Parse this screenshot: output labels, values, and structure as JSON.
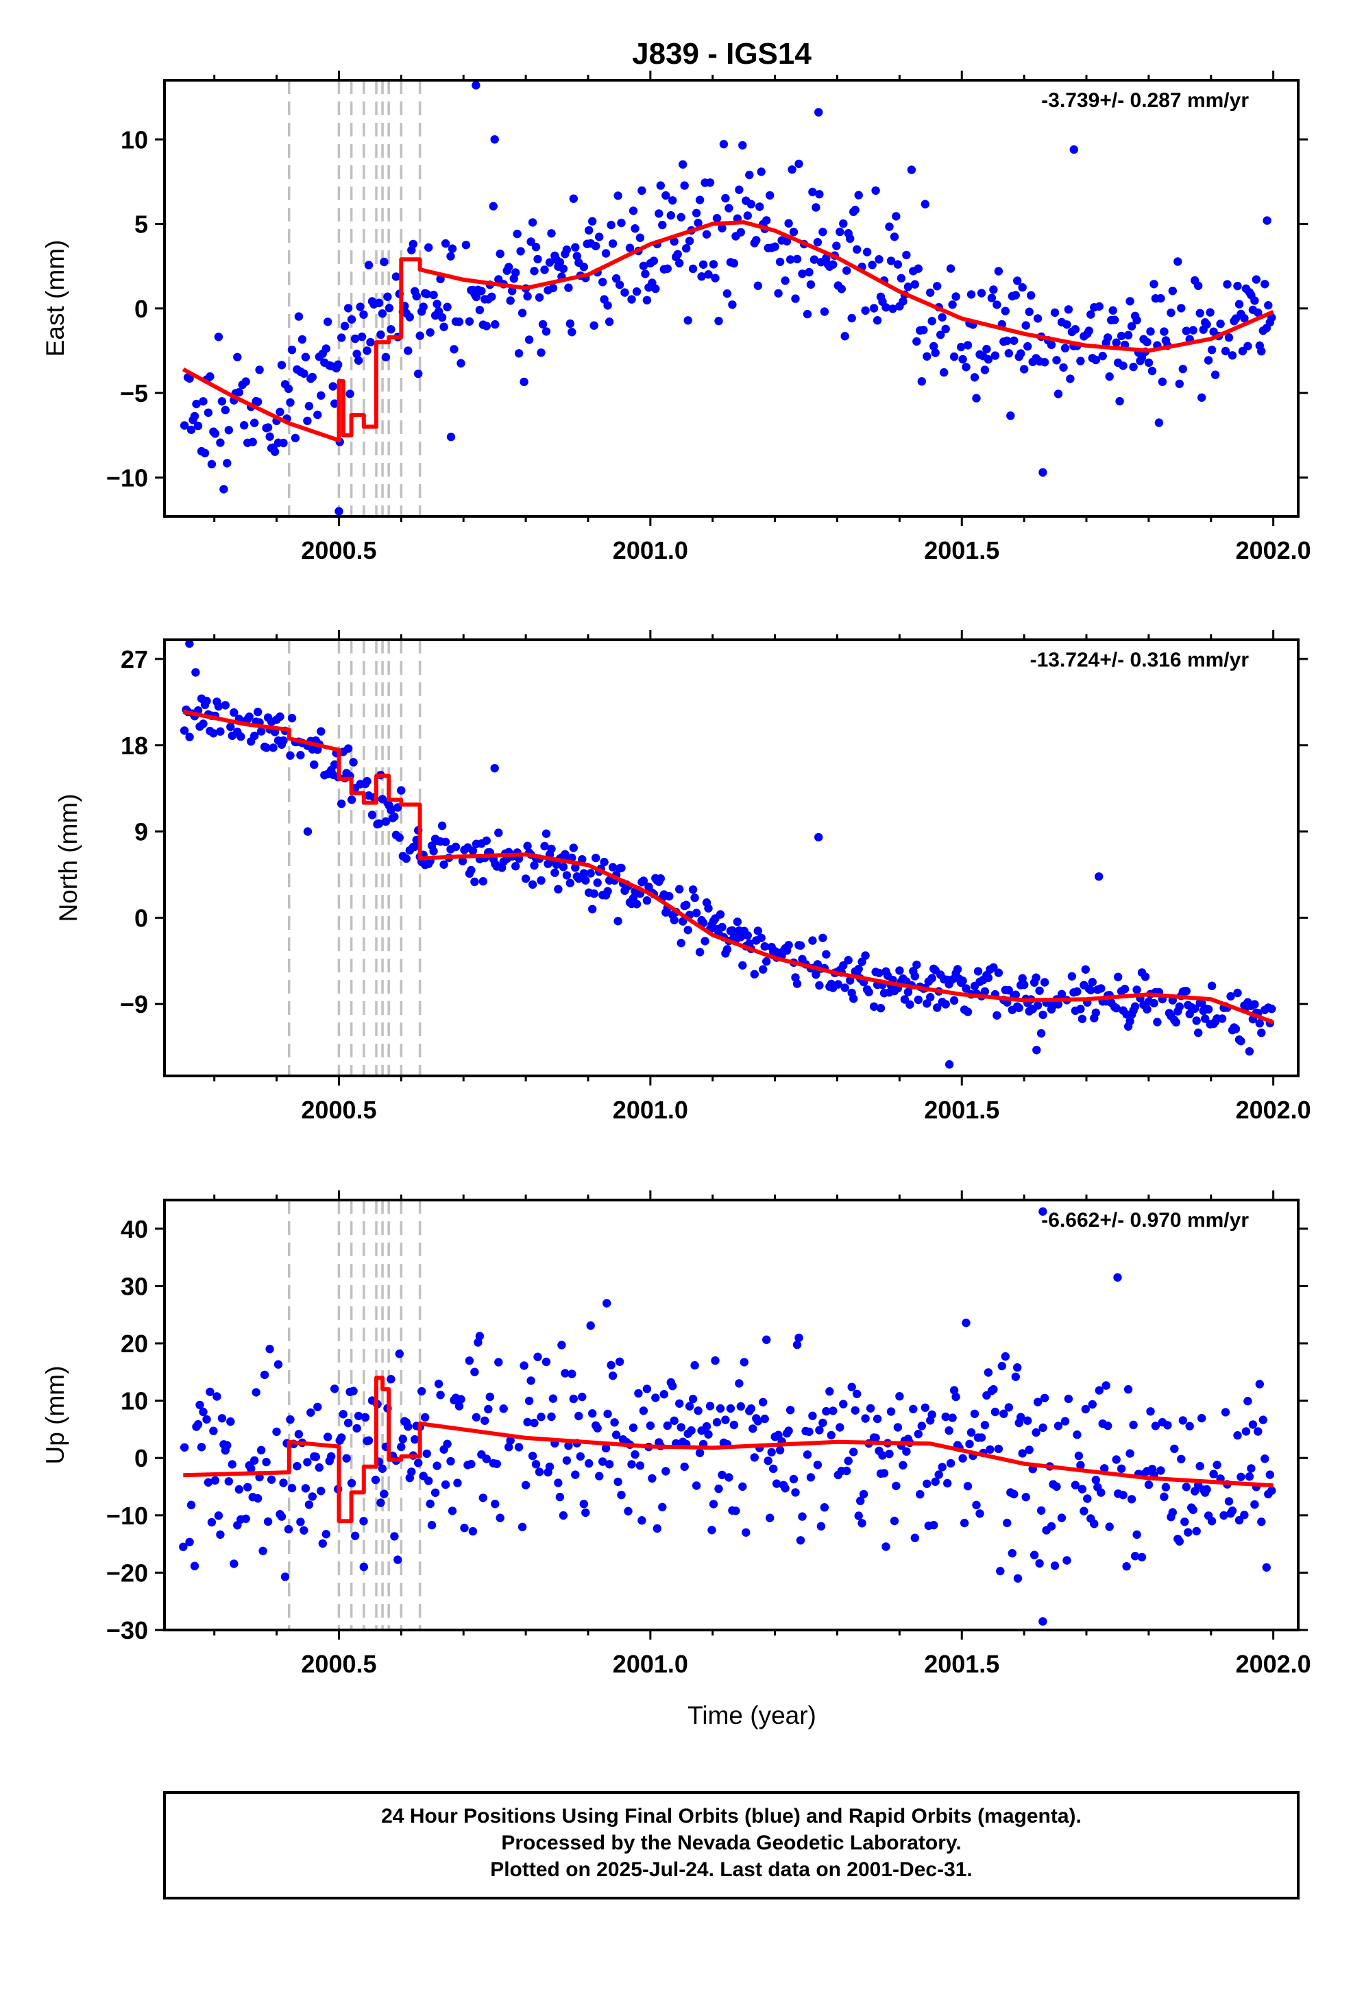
{
  "title": "J839 - IGS14",
  "colors": {
    "final": "#0000ff",
    "rapid": "#ff00ff",
    "model": "#ff0000",
    "events": "#c0c0c0",
    "axes": "#000000"
  },
  "chart_data": [
    {
      "type": "scatter",
      "component": "east",
      "ylabel": "East (mm)",
      "xlabel": "",
      "rate_label": "-3.739+/- 0.287 mm/yr",
      "xlim": [
        2000.22,
        2002.04
      ],
      "ylim": [
        -12.3,
        13.5
      ],
      "xticks": [
        2000.5,
        2001.0,
        2001.5,
        2002.0
      ],
      "xtick_labels": [
        "2000.5",
        "2001.0",
        "2001.5",
        "2002.0"
      ],
      "yticks": [
        -10,
        -5,
        0,
        5,
        10
      ],
      "ytick_labels": [
        "−10",
        "−5",
        "0",
        "5",
        "10"
      ],
      "event_lines": [
        2000.42,
        2000.5,
        2000.52,
        2000.54,
        2000.56,
        2000.57,
        2000.58,
        2000.6,
        2000.63
      ],
      "model": {
        "x": [
          2000.25,
          2000.33,
          2000.42,
          2000.5,
          2000.5,
          2000.507,
          2000.507,
          2000.52,
          2000.52,
          2000.54,
          2000.54,
          2000.56,
          2000.56,
          2000.58,
          2000.58,
          2000.6,
          2000.6,
          2000.63,
          2000.63,
          2000.7,
          2000.8,
          2000.9,
          2001.0,
          2001.1,
          2001.15,
          2001.2,
          2001.3,
          2001.4,
          2001.5,
          2001.6,
          2001.7,
          2001.8,
          2001.9,
          2002.0
        ],
        "y": [
          -3.6,
          -5.2,
          -6.8,
          -7.8,
          -4.3,
          -4.3,
          -7.5,
          -7.5,
          -6.3,
          -6.3,
          -7.0,
          -7.0,
          -2.0,
          -2.0,
          -1.7,
          -1.7,
          2.9,
          2.9,
          2.3,
          1.7,
          1.2,
          2.0,
          3.8,
          5.0,
          5.1,
          4.6,
          3.0,
          1.0,
          -0.6,
          -1.5,
          -2.2,
          -2.5,
          -1.8,
          -0.2
        ]
      },
      "trend": {
        "points": [
          [
            2000.25,
            -5.0
          ],
          [
            2000.4,
            -6.5
          ],
          [
            2000.6,
            0.5
          ],
          [
            2000.8,
            1.3
          ],
          [
            2001.0,
            3.7
          ],
          [
            2001.15,
            5.0
          ],
          [
            2001.3,
            3.0
          ],
          [
            2001.5,
            -0.8
          ],
          [
            2001.75,
            -2.3
          ],
          [
            2002.0,
            -0.2
          ]
        ]
      },
      "scatter_seed": 11,
      "scatter_sd": 2.0,
      "outliers": [
        [
          2000.72,
          13.2
        ],
        [
          2000.75,
          10.0
        ],
        [
          2000.5,
          -12.0
        ],
        [
          2001.63,
          -9.7
        ],
        [
          2001.68,
          9.4
        ],
        [
          2001.27,
          11.6
        ],
        [
          2000.68,
          -7.6
        ],
        [
          2001.99,
          5.2
        ]
      ]
    },
    {
      "type": "scatter",
      "component": "north",
      "ylabel": "North (mm)",
      "xlabel": "",
      "rate_label": "-13.724+/- 0.316 mm/yr",
      "xlim": [
        2000.22,
        2002.04
      ],
      "ylim": [
        -16.5,
        29
      ],
      "xticks": [
        2000.5,
        2001.0,
        2001.5,
        2002.0
      ],
      "xtick_labels": [
        "2000.5",
        "2001.0",
        "2001.5",
        "2002.0"
      ],
      "yticks": [
        -9,
        0,
        9,
        18,
        27
      ],
      "ytick_labels": [
        "−9",
        "0",
        "9",
        "18",
        "27"
      ],
      "event_lines": [
        2000.42,
        2000.5,
        2000.52,
        2000.54,
        2000.56,
        2000.57,
        2000.58,
        2000.6,
        2000.63
      ],
      "model": {
        "x": [
          2000.25,
          2000.35,
          2000.42,
          2000.42,
          2000.5,
          2000.5,
          2000.52,
          2000.52,
          2000.54,
          2000.54,
          2000.56,
          2000.56,
          2000.58,
          2000.58,
          2000.6,
          2000.6,
          2000.63,
          2000.63,
          2000.7,
          2000.8,
          2000.9,
          2001.0,
          2001.1,
          2001.2,
          2001.3,
          2001.4,
          2001.5,
          2001.6,
          2001.7,
          2001.8,
          2001.9,
          2002.0
        ],
        "y": [
          21.5,
          20.2,
          19.6,
          18.7,
          17.5,
          14.5,
          14.5,
          13.0,
          13.0,
          12.0,
          12.0,
          14.8,
          14.8,
          12.3,
          12.3,
          11.8,
          11.8,
          6.2,
          6.4,
          6.6,
          5.5,
          2.5,
          -1.8,
          -4.2,
          -5.8,
          -7.0,
          -8.0,
          -8.6,
          -8.5,
          -8.0,
          -8.5,
          -10.9
        ]
      },
      "trend": {
        "points": [
          [
            2000.25,
            21.3
          ],
          [
            2000.42,
            19.0
          ],
          [
            2000.55,
            12.7
          ],
          [
            2000.63,
            7.0
          ],
          [
            2000.85,
            5.8
          ],
          [
            2001.0,
            2.4
          ],
          [
            2001.15,
            -2.5
          ],
          [
            2001.3,
            -5.6
          ],
          [
            2001.5,
            -8.0
          ],
          [
            2001.75,
            -8.6
          ],
          [
            2002.0,
            -10.6
          ]
        ]
      },
      "scatter_seed": 23,
      "scatter_sd": 1.35,
      "outliers": [
        [
          2000.26,
          28.6
        ],
        [
          2000.27,
          25.6
        ],
        [
          2001.27,
          8.4
        ],
        [
          2001.72,
          4.3
        ],
        [
          2001.48,
          -15.3
        ],
        [
          2001.62,
          -13.8
        ],
        [
          2000.45,
          9.0
        ],
        [
          2000.75,
          15.6
        ]
      ]
    },
    {
      "type": "scatter",
      "component": "up",
      "ylabel": "Up (mm)",
      "xlabel": "Time (year)",
      "rate_label": "-6.662+/- 0.970 mm/yr",
      "xlim": [
        2000.22,
        2002.04
      ],
      "ylim": [
        -30,
        45
      ],
      "xticks": [
        2000.5,
        2001.0,
        2001.5,
        2002.0
      ],
      "xtick_labels": [
        "2000.5",
        "2001.0",
        "2001.5",
        "2002.0"
      ],
      "yticks": [
        -30,
        -20,
        -10,
        0,
        10,
        20,
        30,
        40
      ],
      "ytick_labels": [
        "−30",
        "−20",
        "−10",
        "0",
        "10",
        "20",
        "30",
        "40"
      ],
      "event_lines": [
        2000.42,
        2000.5,
        2000.52,
        2000.54,
        2000.56,
        2000.57,
        2000.58,
        2000.6,
        2000.63
      ],
      "model": {
        "x": [
          2000.25,
          2000.42,
          2000.42,
          2000.5,
          2000.5,
          2000.52,
          2000.52,
          2000.54,
          2000.54,
          2000.56,
          2000.56,
          2000.57,
          2000.57,
          2000.58,
          2000.58,
          2000.6,
          2000.6,
          2000.63,
          2000.63,
          2000.8,
          2001.0,
          2001.1,
          2001.3,
          2001.45,
          2001.6,
          2001.8,
          2002.0
        ],
        "y": [
          -3.0,
          -2.5,
          2.8,
          2.0,
          -11.0,
          -11.0,
          -6.0,
          -6.0,
          -1.5,
          -1.5,
          14.0,
          14.0,
          12.0,
          12.0,
          -0.3,
          -0.3,
          0.3,
          0.3,
          6.0,
          3.5,
          2.0,
          1.8,
          2.8,
          2.5,
          -1.0,
          -3.5,
          -4.8
        ]
      },
      "trend": {
        "points": [
          [
            2000.25,
            -2.5
          ],
          [
            2000.4,
            -2.0
          ],
          [
            2000.55,
            0.0
          ],
          [
            2000.7,
            4.5
          ],
          [
            2000.9,
            2.5
          ],
          [
            2001.1,
            2.0
          ],
          [
            2001.3,
            3.0
          ],
          [
            2001.45,
            2.5
          ],
          [
            2001.65,
            -1.5
          ],
          [
            2001.8,
            -3.5
          ],
          [
            2002.0,
            -4.5
          ]
        ]
      },
      "scatter_seed": 37,
      "scatter_sd": 8.0,
      "outliers": [
        [
          2001.75,
          31.5
        ],
        [
          2001.63,
          43.0
        ],
        [
          2000.93,
          27.0
        ],
        [
          2001.63,
          -28.5
        ],
        [
          2001.59,
          -21.0
        ],
        [
          2000.54,
          -19.0
        ],
        [
          2000.25,
          -15.5
        ]
      ]
    }
  ],
  "footer": {
    "line1": "24 Hour Positions Using Final Orbits (blue) and Rapid Orbits (magenta).",
    "line2": "Processed by the Nevada Geodetic Laboratory.",
    "line3": "Plotted on 2025-Jul-24. Last data on 2001-Dec-31."
  }
}
